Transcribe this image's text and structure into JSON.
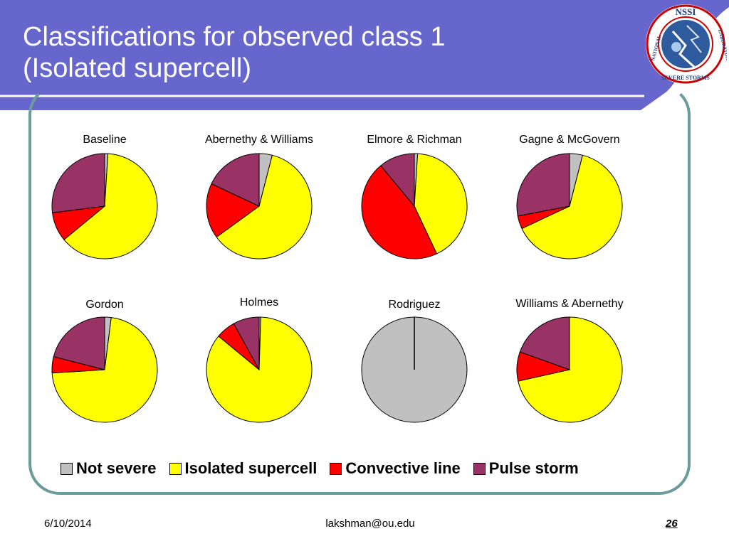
{
  "slide": {
    "title_line1": "Classifications for observed class 1",
    "title_line2": "(Isolated supercell)",
    "footer_date": "6/10/2014",
    "footer_email": "lakshman@ou.edu",
    "page_number": "26"
  },
  "logo": {
    "top_text": "NSSI",
    "left_text": "NATIONAL",
    "bottom_text": "SEVERE STORMS",
    "right_text": "LABORATORY"
  },
  "colors": {
    "header_band": "#6666cc",
    "frame": "#6a9c9c",
    "not_severe": "#c0c0c0",
    "isolated_supercell": "#ffff00",
    "convective_line": "#ff0000",
    "pulse_storm": "#993366"
  },
  "chart_data": {
    "type": "pie",
    "categories": [
      "Not severe",
      "Isolated supercell",
      "Convective line",
      "Pulse storm"
    ],
    "legend": [
      "Not severe",
      "Isolated supercell",
      "Convective line",
      "Pulse storm"
    ],
    "legend_position": "bottom",
    "pies": [
      {
        "title": "Baseline",
        "values": [
          1,
          63,
          9,
          27
        ]
      },
      {
        "title": "Abernethy & Williams",
        "values": [
          4,
          61,
          17,
          18
        ]
      },
      {
        "title": "Elmore & Richman",
        "values": [
          1,
          42,
          46,
          11
        ]
      },
      {
        "title": "Gagne & McGovern",
        "values": [
          4,
          64,
          4,
          28
        ]
      },
      {
        "title": "Gordon",
        "values": [
          2,
          72,
          5,
          21
        ]
      },
      {
        "title": "Holmes",
        "values": [
          0.5,
          85.5,
          6,
          8
        ]
      },
      {
        "title": "Rodriguez",
        "values": [
          100,
          0,
          0,
          0
        ]
      },
      {
        "title": "Williams & Abernethy",
        "values": [
          0,
          71.5,
          9,
          19.5
        ]
      }
    ]
  }
}
